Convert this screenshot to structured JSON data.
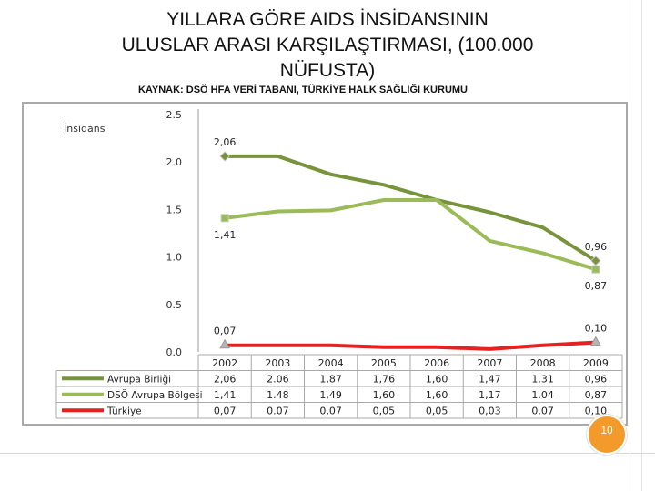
{
  "title_lines": [
    "YILLARA GÖRE AIDS İNSİDANSININ",
    "ULUSLAR ARASI KARŞILAŞTIRMASI, (100.000",
    "NÜFUSTA)"
  ],
  "source": "KAYNAK: DSÖ HFA VERİ TABANI, TÜRKİYE HALK SAĞLIĞI KURUMU",
  "page_number": "10",
  "colors": {
    "avrupa_birligi": "#77933c",
    "dso_avrupa": "#9bbb59",
    "turkiye": "#e52222",
    "page_badge": "#f39a2b"
  },
  "chart_data": {
    "type": "line",
    "ylabel": "İnsidans",
    "ylim": [
      0.0,
      2.5
    ],
    "y_ticks": [
      "0.0",
      "0.5",
      "1.0",
      "1.5",
      "2.0",
      "2.5"
    ],
    "categories": [
      "2002",
      "2003",
      "2004",
      "2005",
      "2006",
      "2007",
      "2008",
      "2009"
    ],
    "grid": false,
    "legend": "bottom-left (data table)",
    "series": [
      {
        "name": "Avrupa Birliği",
        "values": [
          2.06,
          2.06,
          1.87,
          1.76,
          1.6,
          1.47,
          1.31,
          0.96
        ],
        "table_labels": [
          "2,06",
          "2.06",
          "1,87",
          "1,76",
          "1,60",
          "1,47",
          "1.31",
          "0,96"
        ]
      },
      {
        "name": "DSÖ Avrupa Bölgesi",
        "values": [
          1.41,
          1.48,
          1.49,
          1.6,
          1.6,
          1.17,
          1.04,
          0.87
        ],
        "table_labels": [
          "1,41",
          "1.48",
          "1,49",
          "1,60",
          "1,60",
          "1,17",
          "1.04",
          "0,87"
        ]
      },
      {
        "name": "Türkiye",
        "values": [
          0.07,
          0.07,
          0.07,
          0.05,
          0.05,
          0.03,
          0.07,
          0.1
        ],
        "table_labels": [
          "0,07",
          "0.07",
          "0,07",
          "0,05",
          "0,05",
          "0,03",
          "0.07",
          "0,10"
        ]
      }
    ],
    "annotations": [
      {
        "series": 0,
        "point": 0,
        "text": "2,06",
        "pos": "above"
      },
      {
        "series": 0,
        "point": 7,
        "text": "0,96",
        "pos": "above"
      },
      {
        "series": 1,
        "point": 0,
        "text": "1,41",
        "pos": "below"
      },
      {
        "series": 1,
        "point": 7,
        "text": "0,87",
        "pos": "below"
      },
      {
        "series": 2,
        "point": 0,
        "text": "0,07",
        "pos": "above"
      },
      {
        "series": 2,
        "point": 7,
        "text": "0,10",
        "pos": "above"
      }
    ]
  }
}
